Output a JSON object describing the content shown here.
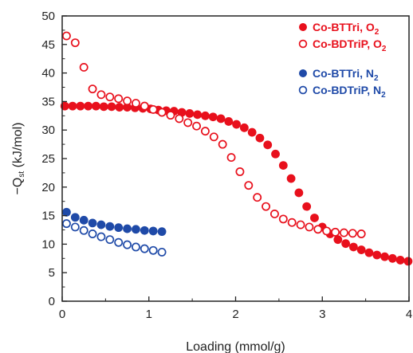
{
  "chart_data": {
    "type": "scatter",
    "xlabel": "Loading (mmol/g)",
    "ylabel": "−Qst (kJ/mol)",
    "ylabel_parts": {
      "prefix": "−Q",
      "sub": "st",
      "suffix": " (kJ/mol)"
    },
    "xlim": [
      0,
      4
    ],
    "ylim": [
      0,
      50
    ],
    "x_ticks": [
      "0",
      "1",
      "2",
      "3",
      "4"
    ],
    "y_ticks": [
      "0",
      "5",
      "10",
      "15",
      "20",
      "25",
      "30",
      "35",
      "40",
      "45",
      "50"
    ],
    "grid": false,
    "legend_placement": "top-right",
    "series": [
      {
        "name": "Co-BTTri, O2",
        "label_main": "Co-BTTri, O",
        "label_sub": "2",
        "color": "#e8101c",
        "marker": "filled-circle",
        "points": [
          [
            0.03,
            34.2
          ],
          [
            0.12,
            34.2
          ],
          [
            0.21,
            34.2
          ],
          [
            0.3,
            34.2
          ],
          [
            0.39,
            34.2
          ],
          [
            0.48,
            34.1
          ],
          [
            0.57,
            34.1
          ],
          [
            0.66,
            34.0
          ],
          [
            0.75,
            34.0
          ],
          [
            0.84,
            33.9
          ],
          [
            0.93,
            33.8
          ],
          [
            1.02,
            33.7
          ],
          [
            1.11,
            33.5
          ],
          [
            1.2,
            33.4
          ],
          [
            1.29,
            33.3
          ],
          [
            1.38,
            33.1
          ],
          [
            1.47,
            32.9
          ],
          [
            1.56,
            32.7
          ],
          [
            1.65,
            32.5
          ],
          [
            1.74,
            32.3
          ],
          [
            1.83,
            32.0
          ],
          [
            1.92,
            31.5
          ],
          [
            2.01,
            31.0
          ],
          [
            2.1,
            30.4
          ],
          [
            2.19,
            29.6
          ],
          [
            2.28,
            28.6
          ],
          [
            2.37,
            27.4
          ],
          [
            2.46,
            25.8
          ],
          [
            2.55,
            23.8
          ],
          [
            2.64,
            21.5
          ],
          [
            2.73,
            19.0
          ],
          [
            2.82,
            16.6
          ],
          [
            2.91,
            14.6
          ],
          [
            3.0,
            13.0
          ],
          [
            3.09,
            11.8
          ],
          [
            3.18,
            10.8
          ],
          [
            3.27,
            10.1
          ],
          [
            3.36,
            9.5
          ],
          [
            3.45,
            9.0
          ],
          [
            3.54,
            8.5
          ],
          [
            3.63,
            8.1
          ],
          [
            3.72,
            7.8
          ],
          [
            3.81,
            7.5
          ],
          [
            3.9,
            7.2
          ],
          [
            3.99,
            7.0
          ]
        ]
      },
      {
        "name": "Co-BDTriP, O2",
        "label_main": "Co-BDTriP, O",
        "label_sub": "2",
        "color": "#e8101c",
        "marker": "open-circle",
        "points": [
          [
            0.05,
            46.5
          ],
          [
            0.15,
            45.3
          ],
          [
            0.25,
            41.0
          ],
          [
            0.35,
            37.2
          ],
          [
            0.45,
            36.2
          ],
          [
            0.55,
            35.8
          ],
          [
            0.65,
            35.5
          ],
          [
            0.75,
            35.1
          ],
          [
            0.85,
            34.7
          ],
          [
            0.95,
            34.2
          ],
          [
            1.05,
            33.6
          ],
          [
            1.15,
            33.1
          ],
          [
            1.25,
            32.6
          ],
          [
            1.35,
            32.0
          ],
          [
            1.45,
            31.3
          ],
          [
            1.55,
            30.7
          ],
          [
            1.65,
            29.8
          ],
          [
            1.75,
            28.8
          ],
          [
            1.85,
            27.5
          ],
          [
            1.95,
            25.2
          ],
          [
            2.05,
            22.7
          ],
          [
            2.15,
            20.3
          ],
          [
            2.25,
            18.2
          ],
          [
            2.35,
            16.6
          ],
          [
            2.45,
            15.3
          ],
          [
            2.55,
            14.4
          ],
          [
            2.65,
            13.8
          ],
          [
            2.75,
            13.4
          ],
          [
            2.85,
            13.0
          ],
          [
            2.95,
            12.6
          ],
          [
            3.05,
            12.3
          ],
          [
            3.15,
            12.1
          ],
          [
            3.25,
            12.0
          ],
          [
            3.35,
            11.9
          ],
          [
            3.45,
            11.8
          ]
        ]
      },
      {
        "name": "Co-BTTri, N2",
        "label_main": "Co-BTTri, N",
        "label_sub": "2",
        "color": "#1f4aa8",
        "marker": "filled-circle",
        "points": [
          [
            0.05,
            15.6
          ],
          [
            0.15,
            14.7
          ],
          [
            0.25,
            14.2
          ],
          [
            0.35,
            13.7
          ],
          [
            0.45,
            13.4
          ],
          [
            0.55,
            13.1
          ],
          [
            0.65,
            12.9
          ],
          [
            0.75,
            12.7
          ],
          [
            0.85,
            12.6
          ],
          [
            0.95,
            12.4
          ],
          [
            1.05,
            12.3
          ],
          [
            1.15,
            12.2
          ]
        ]
      },
      {
        "name": "Co-BDTriP, N2",
        "label_main": "Co-BDTriP, N",
        "label_sub": "2",
        "color": "#1f4aa8",
        "marker": "open-circle",
        "points": [
          [
            0.05,
            13.6
          ],
          [
            0.15,
            13.0
          ],
          [
            0.25,
            12.4
          ],
          [
            0.35,
            11.8
          ],
          [
            0.45,
            11.3
          ],
          [
            0.55,
            10.8
          ],
          [
            0.65,
            10.3
          ],
          [
            0.75,
            9.9
          ],
          [
            0.85,
            9.5
          ],
          [
            0.95,
            9.2
          ],
          [
            1.05,
            8.9
          ],
          [
            1.15,
            8.6
          ]
        ]
      }
    ]
  }
}
